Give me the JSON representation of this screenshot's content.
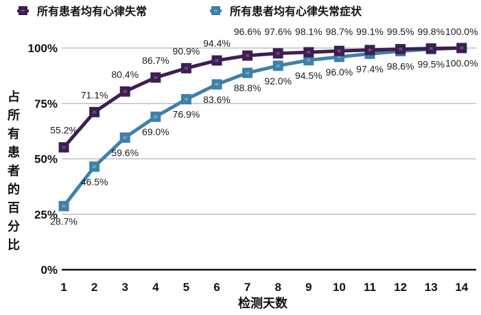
{
  "chart_data": {
    "type": "line",
    "title": "",
    "xlabel": "检测天数",
    "ylabel": "占所有患者的百分比",
    "x": [
      1,
      2,
      3,
      4,
      5,
      6,
      7,
      8,
      9,
      10,
      11,
      12,
      13,
      14
    ],
    "y_ticks": [
      "0%",
      "25%",
      "50%",
      "75%",
      "100%"
    ],
    "y_tick_values": [
      0,
      25,
      50,
      75,
      100
    ],
    "ylim": [
      0,
      100
    ],
    "grid": true,
    "legend_position": "top",
    "series": [
      {
        "name": "所有患者均有心律失常",
        "color": "#3d1e52",
        "marker_dot": "#8a6aa5",
        "label_position": "above",
        "values": [
          55.2,
          71.1,
          80.4,
          86.7,
          90.9,
          94.4,
          96.6,
          97.6,
          98.1,
          98.7,
          99.1,
          99.5,
          99.8,
          100.0
        ],
        "labels": [
          "55.2%",
          "71.1%",
          "80.4%",
          "86.7%",
          "90.9%",
          "94.4%",
          "96.6%",
          "97.6%",
          "98.1%",
          "98.7%",
          "99.1%",
          "99.5%",
          "99.8%",
          "100.0%"
        ]
      },
      {
        "name": "所有患者均有心律失常症状",
        "color": "#3e80aa",
        "marker_dot": "#8fc0d8",
        "label_position": "below",
        "values": [
          28.7,
          46.5,
          59.6,
          69.0,
          76.9,
          83.6,
          88.8,
          92.0,
          94.5,
          96.0,
          97.4,
          98.6,
          99.5,
          100.0
        ],
        "labels": [
          "28.7%",
          "46.5%",
          "59.6%",
          "69.0%",
          "76.9%",
          "83.6%",
          "88.8%",
          "92.0%",
          "94.5%",
          "96.0%",
          "97.4%",
          "98.6%",
          "99.5%",
          "100.0%"
        ]
      }
    ]
  }
}
